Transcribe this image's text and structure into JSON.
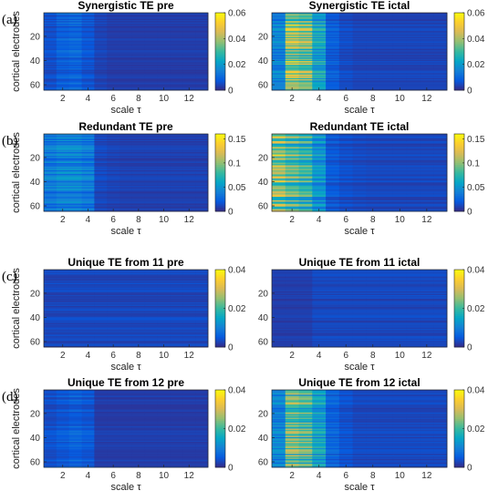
{
  "chart_data": [
    {
      "type": "heatmap",
      "panel_label": "(a)",
      "title": "Synergistic TE pre",
      "xlabel": "scale τ",
      "ylabel": "cortical electrodes",
      "x": [
        1,
        2,
        3,
        4,
        5,
        6,
        7,
        8,
        9,
        10,
        11,
        12,
        13
      ],
      "ylim": [
        1,
        64
      ],
      "yticks": [
        20,
        40,
        60
      ],
      "xticks": [
        2,
        4,
        6,
        8,
        10,
        12
      ],
      "colorbar": {
        "range": [
          0,
          0.06
        ],
        "ticks": [
          "0",
          "0.02",
          "0.04",
          "0.06"
        ],
        "colormap": "parula"
      },
      "profile": [
        0.006,
        0.009,
        0.01,
        0.007,
        0.004,
        0.003,
        0.003,
        0.003,
        0.003,
        0.003,
        0.003,
        0.003,
        0.003
      ]
    },
    {
      "type": "heatmap",
      "panel_label": "",
      "title": "Synergistic TE ictal",
      "xlabel": "scale τ",
      "ylabel": "",
      "x": [
        1,
        2,
        3,
        4,
        5,
        6,
        7,
        8,
        9,
        10,
        11,
        12,
        13
      ],
      "ylim": [
        1,
        64
      ],
      "yticks": [
        20,
        40,
        60
      ],
      "xticks": [
        2,
        4,
        6,
        8,
        10,
        12
      ],
      "colorbar": {
        "range": [
          0,
          0.06
        ],
        "ticks": [
          "0",
          "0.02",
          "0.04",
          "0.06"
        ],
        "colormap": "parula"
      },
      "profile": [
        0.015,
        0.038,
        0.035,
        0.022,
        0.008,
        0.005,
        0.004,
        0.004,
        0.004,
        0.004,
        0.004,
        0.004,
        0.004
      ]
    },
    {
      "type": "heatmap",
      "panel_label": "(b)",
      "title": "Redundant TE pre",
      "xlabel": "scale τ",
      "ylabel": "cortical electrodes",
      "x": [
        1,
        2,
        3,
        4,
        5,
        6,
        7,
        8,
        9,
        10,
        11,
        12,
        13
      ],
      "ylim": [
        1,
        64
      ],
      "yticks": [
        20,
        40,
        60
      ],
      "xticks": [
        2,
        4,
        6,
        8,
        10,
        12
      ],
      "colorbar": {
        "range": [
          0,
          0.16
        ],
        "ticks": [
          "0",
          "0.05",
          "0.1",
          "0.15"
        ],
        "colormap": "parula"
      },
      "profile": [
        0.035,
        0.04,
        0.04,
        0.035,
        0.012,
        0.01,
        0.009,
        0.009,
        0.009,
        0.009,
        0.009,
        0.009,
        0.009
      ]
    },
    {
      "type": "heatmap",
      "panel_label": "",
      "title": "Redundant TE ictal",
      "xlabel": "scale τ",
      "ylabel": "",
      "x": [
        1,
        2,
        3,
        4,
        5,
        6,
        7,
        8,
        9,
        10,
        11,
        12,
        13
      ],
      "ylim": [
        1,
        64
      ],
      "yticks": [
        20,
        40,
        60
      ],
      "xticks": [
        2,
        4,
        6,
        8,
        10,
        12
      ],
      "colorbar": {
        "range": [
          0,
          0.16
        ],
        "ticks": [
          "0",
          "0.05",
          "0.1",
          "0.15"
        ],
        "colormap": "parula"
      },
      "profile": [
        0.1,
        0.085,
        0.075,
        0.05,
        0.02,
        0.015,
        0.013,
        0.012,
        0.012,
        0.012,
        0.012,
        0.012,
        0.012
      ]
    },
    {
      "type": "heatmap",
      "panel_label": "(c)",
      "title": "Unique TE from 11 pre",
      "xlabel": "scale τ",
      "ylabel": "cortical electrodes",
      "x": [
        1,
        2,
        3,
        4,
        5,
        6,
        7,
        8,
        9,
        10,
        11,
        12,
        13
      ],
      "ylim": [
        1,
        64
      ],
      "yticks": [
        20,
        40,
        60
      ],
      "xticks": [
        2,
        4,
        6,
        8,
        10,
        12
      ],
      "colorbar": {
        "range": [
          0,
          0.04
        ],
        "ticks": [
          "0",
          "0.02",
          "0.04"
        ],
        "colormap": "parula"
      },
      "profile": [
        0.003,
        0.003,
        0.003,
        0.003,
        0.003,
        0.003,
        0.003,
        0.003,
        0.003,
        0.003,
        0.003,
        0.003,
        0.003
      ]
    },
    {
      "type": "heatmap",
      "panel_label": "",
      "title": "Unique TE from 11 ictal",
      "xlabel": "scale τ",
      "ylabel": "",
      "x": [
        1,
        2,
        3,
        4,
        5,
        6,
        7,
        8,
        9,
        10,
        11,
        12,
        13
      ],
      "ylim": [
        1,
        64
      ],
      "yticks": [
        20,
        40,
        60
      ],
      "xticks": [
        2,
        4,
        6,
        8,
        10,
        12
      ],
      "colorbar": {
        "range": [
          0,
          0.04
        ],
        "ticks": [
          "0",
          "0.02",
          "0.04"
        ],
        "colormap": "parula"
      },
      "profile": [
        0.002,
        0.002,
        0.002,
        0.003,
        0.003,
        0.003,
        0.003,
        0.003,
        0.003,
        0.003,
        0.003,
        0.003,
        0.003
      ]
    },
    {
      "type": "heatmap",
      "panel_label": "(d)",
      "title": "Unique TE from 12 pre",
      "xlabel": "scale τ",
      "ylabel": "cortical electrodes",
      "x": [
        1,
        2,
        3,
        4,
        5,
        6,
        7,
        8,
        9,
        10,
        11,
        12,
        13
      ],
      "ylim": [
        1,
        64
      ],
      "yticks": [
        20,
        40,
        60
      ],
      "xticks": [
        2,
        4,
        6,
        8,
        10,
        12
      ],
      "colorbar": {
        "range": [
          0,
          0.04
        ],
        "ticks": [
          "0",
          "0.02",
          "0.04"
        ],
        "colormap": "parula"
      },
      "profile": [
        0.004,
        0.005,
        0.006,
        0.005,
        0.002,
        0.002,
        0.002,
        0.002,
        0.002,
        0.002,
        0.002,
        0.002,
        0.002
      ]
    },
    {
      "type": "heatmap",
      "panel_label": "",
      "title": "Unique TE from 12 ictal",
      "xlabel": "scale τ",
      "ylabel": "",
      "x": [
        1,
        2,
        3,
        4,
        5,
        6,
        7,
        8,
        9,
        10,
        11,
        12,
        13
      ],
      "ylim": [
        1,
        64
      ],
      "yticks": [
        20,
        40,
        60
      ],
      "xticks": [
        2,
        4,
        6,
        8,
        10,
        12
      ],
      "colorbar": {
        "range": [
          0,
          0.04
        ],
        "ticks": [
          "0",
          "0.02",
          "0.04"
        ],
        "colormap": "parula"
      },
      "profile": [
        0.01,
        0.022,
        0.02,
        0.014,
        0.006,
        0.004,
        0.003,
        0.003,
        0.003,
        0.003,
        0.003,
        0.003,
        0.003
      ]
    }
  ]
}
